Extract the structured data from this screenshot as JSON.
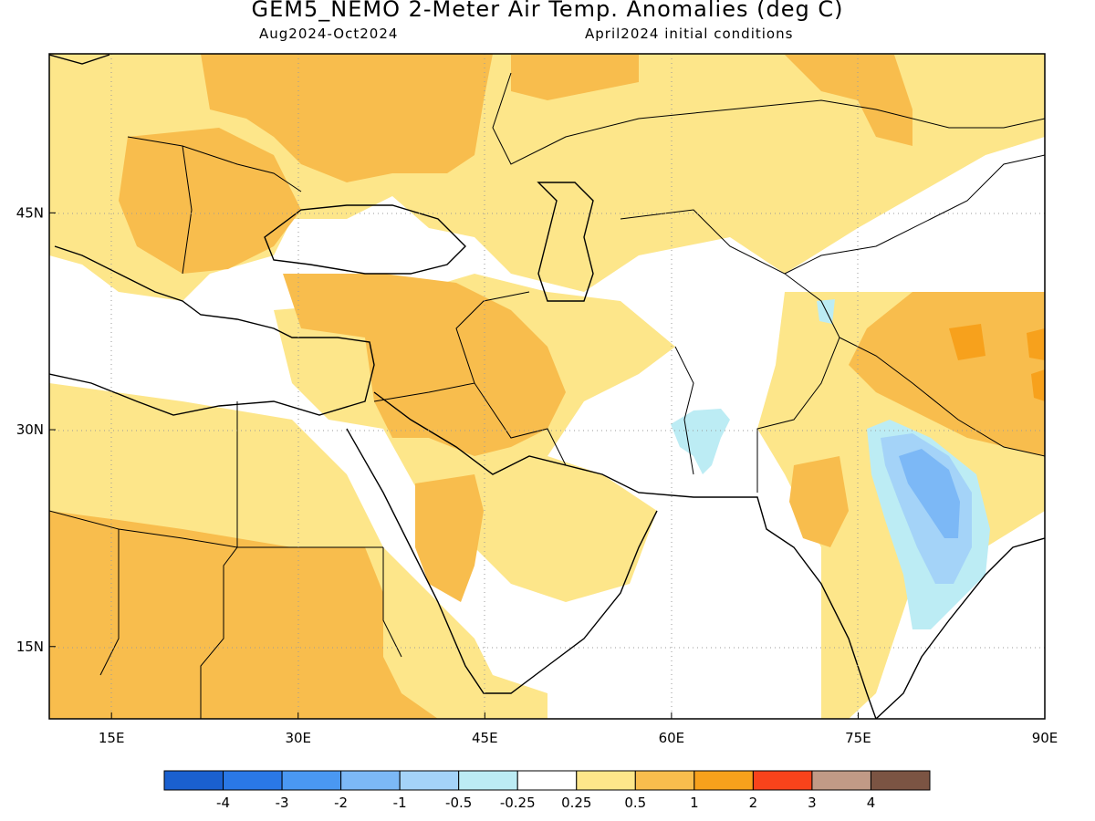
{
  "header": {
    "title": "GEM5_NEMO 2-Meter Air Temp. Anomalies (deg C)",
    "period": "Aug2024-Oct2024",
    "init": "April2024 initial conditions"
  },
  "map": {
    "lon_range": [
      10,
      90
    ],
    "lat_range": [
      10,
      56
    ],
    "x_ticks": [
      {
        "lon": 15,
        "label": "15E"
      },
      {
        "lon": 30,
        "label": "30E"
      },
      {
        "lon": 45,
        "label": "45E"
      },
      {
        "lon": 60,
        "label": "60E"
      },
      {
        "lon": 75,
        "label": "75E"
      },
      {
        "lon": 90,
        "label": "90E"
      }
    ],
    "y_ticks": [
      {
        "lat": 45,
        "label": "45N"
      },
      {
        "lat": 30,
        "label": "30N"
      },
      {
        "lat": 15,
        "label": "15N"
      }
    ],
    "grid": "dotted"
  },
  "colorbar": {
    "colors": [
      "#1a60cf",
      "#2a78e6",
      "#4a98f2",
      "#7cb8f6",
      "#a4d3f8",
      "#bcecf4",
      "#ffffff",
      "#fde68a",
      "#f8bd4d",
      "#f7a11c",
      "#f8431b",
      "#c19a86",
      "#7b5443"
    ],
    "labels": [
      "-4",
      "-3",
      "-2",
      "-1",
      "-0.5",
      "-0.25",
      "0.25",
      "0.5",
      "1",
      "2",
      "3",
      "4"
    ]
  }
}
